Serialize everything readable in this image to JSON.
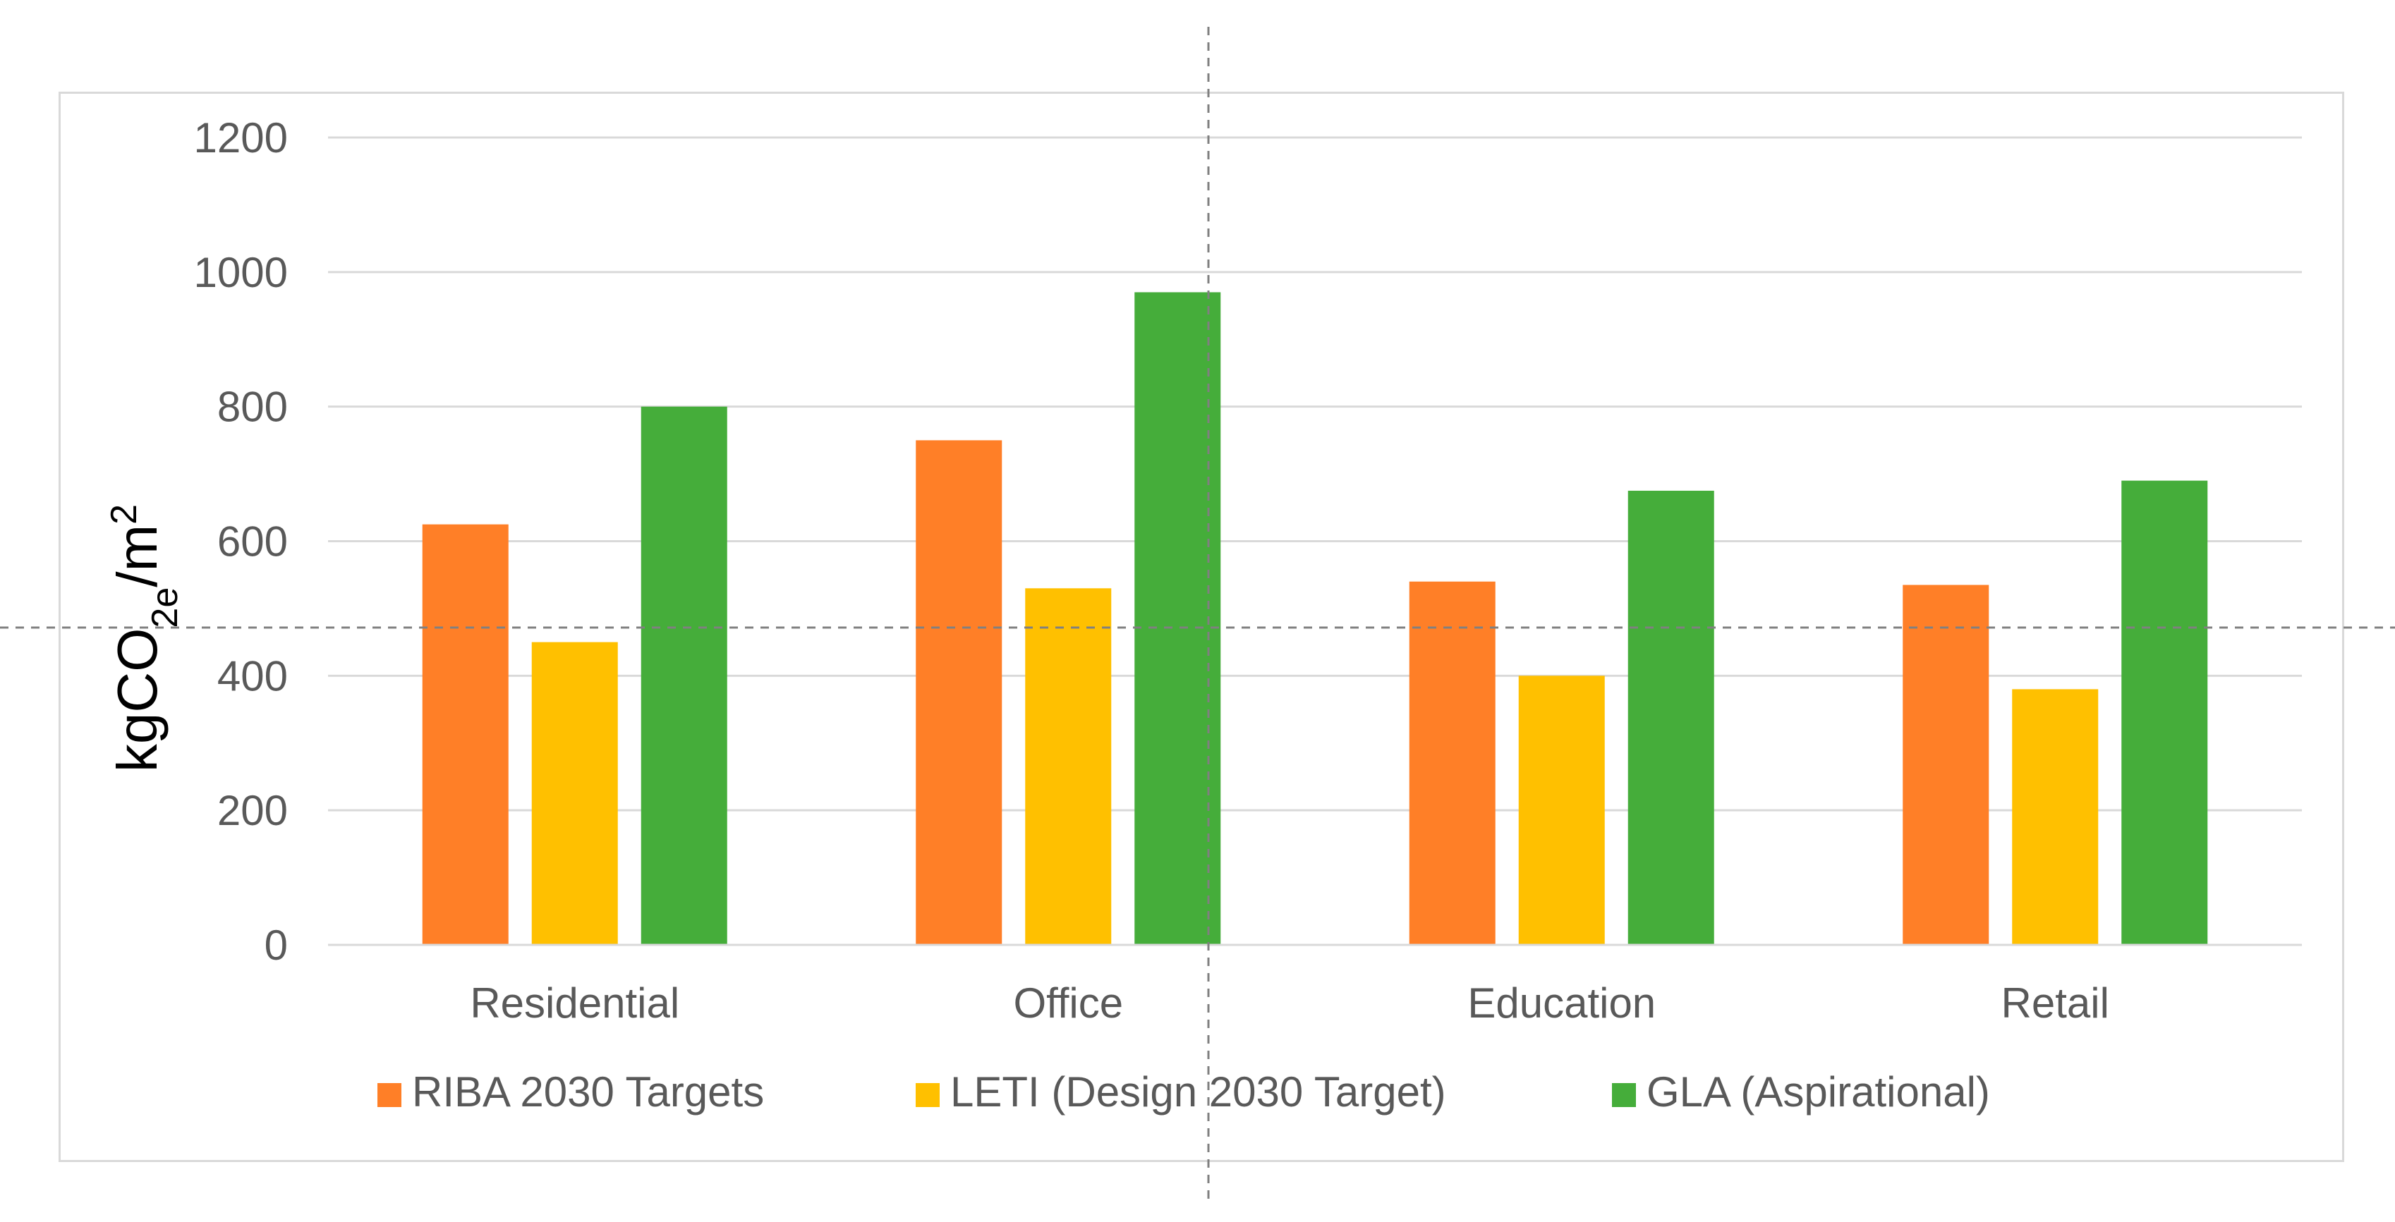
{
  "chart_data": {
    "type": "bar",
    "title": "",
    "xlabel": "",
    "ylabel": "kgCO2e/m2",
    "ylabel_parts": {
      "base": "kgCO",
      "sub": "2e",
      "mid": "/m",
      "sup": "2"
    },
    "ylim": [
      0,
      1200
    ],
    "yticks": [
      0,
      200,
      400,
      600,
      800,
      1000,
      1200
    ],
    "grid": true,
    "legend_position": "bottom",
    "categories": [
      "Residential",
      "Office",
      "Education",
      "Retail"
    ],
    "series": [
      {
        "name": "RIBA 2030 Targets",
        "color": "#FF7F27",
        "values": [
          625,
          750,
          540,
          535
        ]
      },
      {
        "name": "LETI (Design 2030 Target)",
        "color": "#FFC000",
        "values": [
          450,
          530,
          400,
          380
        ]
      },
      {
        "name": "GLA (Aspirational)",
        "color": "#45AD3A",
        "values": [
          800,
          970,
          675,
          690
        ]
      }
    ]
  }
}
